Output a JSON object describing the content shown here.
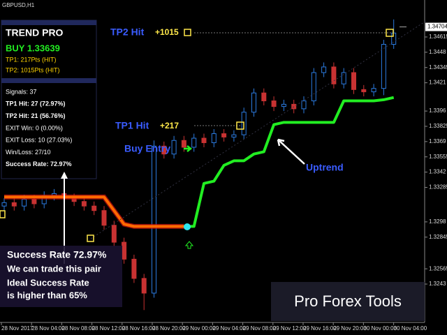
{
  "chart_data": {
    "type": "candlestick",
    "symbol": "GBPUSD,H1",
    "open": [
      1.3312,
      1.3315,
      1.3312,
      1.3318,
      1.3314,
      1.3321,
      1.3323,
      1.3319,
      1.3316,
      1.3312,
      1.3308,
      1.3295,
      1.328,
      1.3265,
      1.3248,
      1.3235,
      1.3365,
      1.3358,
      1.337,
      1.3364,
      1.3372,
      1.3368,
      1.3376,
      1.3373,
      1.3375,
      1.3395,
      1.3412,
      1.3405,
      1.34,
      1.3402,
      1.3398,
      1.3405,
      1.343,
      1.3435,
      1.342,
      1.343,
      1.3415,
      1.3413,
      1.3416,
      1.3455
    ],
    "high": [
      1.3319,
      1.3319,
      1.3322,
      1.3322,
      1.3325,
      1.3327,
      1.3327,
      1.3323,
      1.332,
      1.3316,
      1.3312,
      1.3299,
      1.3284,
      1.3269,
      1.3252,
      1.337,
      1.3369,
      1.3374,
      1.3374,
      1.3376,
      1.3376,
      1.338,
      1.338,
      1.3379,
      1.3399,
      1.3416,
      1.3416,
      1.3409,
      1.3406,
      1.3406,
      1.3409,
      1.3434,
      1.3439,
      1.3439,
      1.3434,
      1.3434,
      1.3419,
      1.342,
      1.3459,
      1.3477
    ],
    "low": [
      1.3308,
      1.3308,
      1.3308,
      1.331,
      1.331,
      1.3317,
      1.3315,
      1.3312,
      1.3308,
      1.3304,
      1.3291,
      1.3276,
      1.3261,
      1.3244,
      1.322,
      1.3231,
      1.3354,
      1.3354,
      1.336,
      1.336,
      1.3364,
      1.3364,
      1.3369,
      1.3369,
      1.3371,
      1.3391,
      1.3401,
      1.3396,
      1.3396,
      1.3394,
      1.3394,
      1.3401,
      1.3426,
      1.3416,
      1.3416,
      1.3411,
      1.3409,
      1.3409,
      1.341,
      1.3451
    ],
    "close": [
      1.3315,
      1.3312,
      1.3318,
      1.3314,
      1.3321,
      1.3323,
      1.3319,
      1.3316,
      1.3312,
      1.3308,
      1.3295,
      1.328,
      1.3265,
      1.3248,
      1.3235,
      1.3365,
      1.3358,
      1.337,
      1.3364,
      1.3372,
      1.3368,
      1.3376,
      1.3373,
      1.3375,
      1.3395,
      1.3412,
      1.3405,
      1.34,
      1.3402,
      1.3398,
      1.3405,
      1.343,
      1.3435,
      1.342,
      1.343,
      1.3415,
      1.3413,
      1.3416,
      1.3455,
      1.3465
    ],
    "up_color": "#2b7be0",
    "down_color": "#c83232",
    "indicator": [
      {
        "color": "#ff6a00",
        "values": [
          1.332,
          1.332,
          1.332,
          1.332,
          1.332,
          1.332,
          1.332,
          1.332,
          1.332,
          1.332,
          1.332,
          1.3308,
          1.3296,
          1.3294,
          1.3294,
          1.3294,
          1.3294,
          1.3294,
          1.3294,
          null,
          null,
          null,
          null,
          null,
          null,
          null,
          null,
          null,
          null,
          null,
          null,
          null,
          null,
          null,
          null,
          null,
          null,
          null,
          null,
          null
        ]
      },
      {
        "color": "#22ee22",
        "values": [
          null,
          null,
          null,
          null,
          null,
          null,
          null,
          null,
          null,
          null,
          null,
          null,
          null,
          null,
          null,
          null,
          null,
          null,
          1.3294,
          1.3294,
          1.3332,
          1.3334,
          1.3348,
          1.3352,
          1.3352,
          1.3358,
          1.336,
          1.3384,
          1.3386,
          1.3386,
          1.3386,
          1.3386,
          1.3386,
          1.3386,
          1.3405,
          1.3405,
          1.3405,
          1.3405,
          1.3406,
          1.3408
        ]
      }
    ],
    "ylim": [
      1.32103,
      1.34942
    ],
    "yticks": [
      1.34615,
      1.3448,
      1.34345,
      1.3421,
      1.3396,
      1.33825,
      1.3369,
      1.33555,
      1.3342,
      1.33285,
      1.3298,
      1.32845,
      1.32565,
      1.3243
    ],
    "current_price": 1.34704,
    "x_labels": [
      "28 Nov 2017",
      "28 Nov 04:00",
      "28 Nov 08:00",
      "28 Nov 12:00",
      "28 Nov 16:00",
      "28 Nov 20:00",
      "29 Nov 00:00",
      "29 Nov 04:00",
      "29 Nov 08:00",
      "29 Nov 12:00",
      "29 Nov 16:00",
      "29 Nov 20:00",
      "30 Nov 00:00",
      "30 Nov 04:00"
    ],
    "panel": {
      "title": "TREND PRO",
      "signal": "BUY 1.33639",
      "tp1": "TP1: 217Pts (HIT)",
      "tp2": "TP2: 1015Pts (HIT)",
      "stats": [
        "Signals: 37",
        "TP1 Hit: 27 (72.97%)",
        "TP2 Hit: 21 (56.76%)",
        "EXIT Win: 0 (0.00%)",
        "EXIT Loss: 10 (27.03%)",
        "Win/Loss: 27/10",
        "Success Rate: 72.97%"
      ]
    },
    "annotations": {
      "tp2": "TP2 Hit",
      "tp2_pts": "+1015",
      "tp1": "TP1 Hit",
      "tp1_pts": "+217",
      "entry": "Buy Entry",
      "uptrend": "Uptrend",
      "note_title": "Success Rate 72.97%",
      "note_lines": [
        "We can trade this pair",
        "Ideal Success Rate",
        "is higher than 65%"
      ],
      "brand": "Pro Forex Tools"
    }
  }
}
